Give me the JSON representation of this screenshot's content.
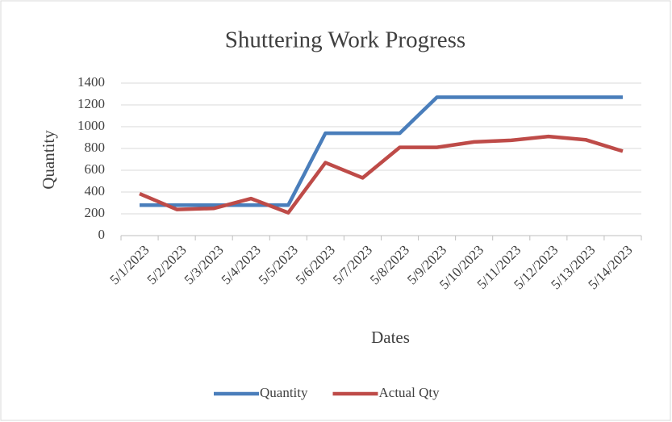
{
  "chart_data": {
    "type": "line",
    "title": "Shuttering Work Progress",
    "x_label": "Dates",
    "y_label": "Quantity",
    "categories": [
      "5/1/2023",
      "5/2/2023",
      "5/3/2023",
      "5/4/2023",
      "5/5/2023",
      "5/6/2023",
      "5/7/2023",
      "5/8/2023",
      "5/9/2023",
      "5/10/2023",
      "5/11/2023",
      "5/12/2023",
      "5/13/2023",
      "5/14/2023"
    ],
    "series": [
      {
        "name": "Quantity",
        "color": "#4a7ebb",
        "values": [
          280,
          280,
          280,
          280,
          280,
          940,
          940,
          940,
          1270,
          1270,
          1270,
          1270,
          1270,
          1270
        ]
      },
      {
        "name": "Actual Qty",
        "color": "#be4b48",
        "values": [
          385,
          240,
          250,
          340,
          210,
          670,
          530,
          810,
          810,
          860,
          875,
          910,
          880,
          775
        ]
      }
    ],
    "ylim": [
      0,
      1400
    ],
    "yticks": [
      0,
      200,
      400,
      600,
      800,
      1000,
      1200,
      1400
    ],
    "grid": true,
    "legend": "bottom"
  }
}
